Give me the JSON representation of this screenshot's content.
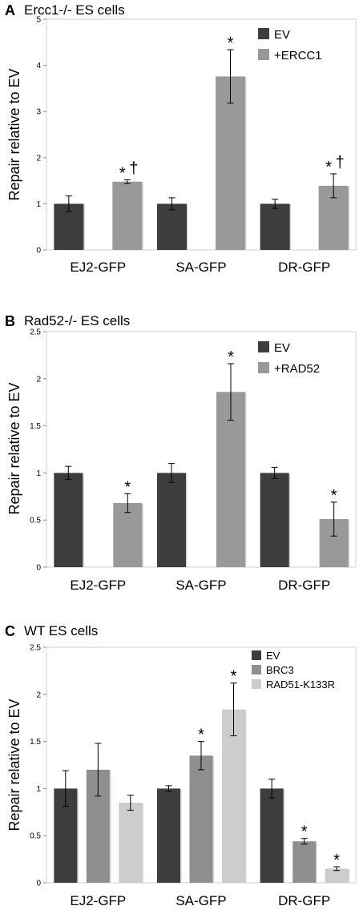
{
  "chart_data": [
    {
      "type": "bar",
      "panel_label": "A",
      "title": "Ercc1-/- ES cells",
      "ylabel": "Repair relative to EV",
      "categories": [
        "EJ2-GFP",
        "SA-GFP",
        "DR-GFP"
      ],
      "ylim": [
        0,
        5
      ],
      "yticks": [
        "0",
        "1",
        "2",
        "3",
        "4",
        "5"
      ],
      "legend": "top-right",
      "series": [
        {
          "name": "EV",
          "color": "#3d3d3d",
          "values": [
            1.0,
            1.0,
            1.0
          ],
          "errors": [
            0.17,
            0.13,
            0.1
          ]
        },
        {
          "name": "+ERCC1",
          "color": "#999999",
          "values": [
            1.48,
            3.76,
            1.39
          ],
          "errors": [
            0.04,
            0.58,
            0.26
          ]
        }
      ],
      "annotations": [
        {
          "series": 1,
          "category": 0,
          "text": "*"
        },
        {
          "series": 1,
          "category": 0,
          "text": "†"
        },
        {
          "series": 1,
          "category": 1,
          "text": "*"
        },
        {
          "series": 1,
          "category": 2,
          "text": "*"
        },
        {
          "series": 1,
          "category": 2,
          "text": "†"
        }
      ]
    },
    {
      "type": "bar",
      "panel_label": "B",
      "title": "Rad52-/- ES cells",
      "ylabel": "Repair relative to EV",
      "categories": [
        "EJ2-GFP",
        "SA-GFP",
        "DR-GFP"
      ],
      "ylim": [
        0,
        2.5
      ],
      "yticks": [
        "0",
        "0.5",
        "1",
        "1.5",
        "2",
        "2.5"
      ],
      "legend": "top-right",
      "series": [
        {
          "name": "EV",
          "color": "#3d3d3d",
          "values": [
            1.0,
            1.0,
            1.0
          ],
          "errors": [
            0.07,
            0.1,
            0.06
          ]
        },
        {
          "name": "+RAD52",
          "color": "#999999",
          "values": [
            0.68,
            1.86,
            0.51
          ],
          "errors": [
            0.1,
            0.3,
            0.18
          ]
        }
      ],
      "annotations": [
        {
          "series": 1,
          "category": 0,
          "text": "*"
        },
        {
          "series": 1,
          "category": 1,
          "text": "*"
        },
        {
          "series": 1,
          "category": 2,
          "text": "*"
        }
      ]
    },
    {
      "type": "bar",
      "panel_label": "C",
      "title": "WT ES cells",
      "ylabel": "Repair relative to EV",
      "categories": [
        "EJ2-GFP",
        "SA-GFP",
        "DR-GFP"
      ],
      "ylim": [
        0,
        2.5
      ],
      "yticks": [
        "0",
        "0.5",
        "1",
        "1.5",
        "2",
        "2.5"
      ],
      "legend": "top-right",
      "series": [
        {
          "name": "EV",
          "color": "#3d3d3d",
          "values": [
            1.0,
            1.0,
            1.0
          ],
          "errors": [
            0.19,
            0.03,
            0.1
          ]
        },
        {
          "name": "BRC3",
          "color": "#8f8f8f",
          "values": [
            1.2,
            1.35,
            0.44
          ],
          "errors": [
            0.28,
            0.15,
            0.03
          ]
        },
        {
          "name": "RAD51-K133R",
          "color": "#cccccc",
          "values": [
            0.85,
            1.84,
            0.15
          ],
          "errors": [
            0.08,
            0.28,
            0.02
          ]
        }
      ],
      "annotations": [
        {
          "series": 1,
          "category": 1,
          "text": "*"
        },
        {
          "series": 2,
          "category": 1,
          "text": "*"
        },
        {
          "series": 1,
          "category": 2,
          "text": "*"
        },
        {
          "series": 2,
          "category": 2,
          "text": "*"
        }
      ]
    }
  ]
}
